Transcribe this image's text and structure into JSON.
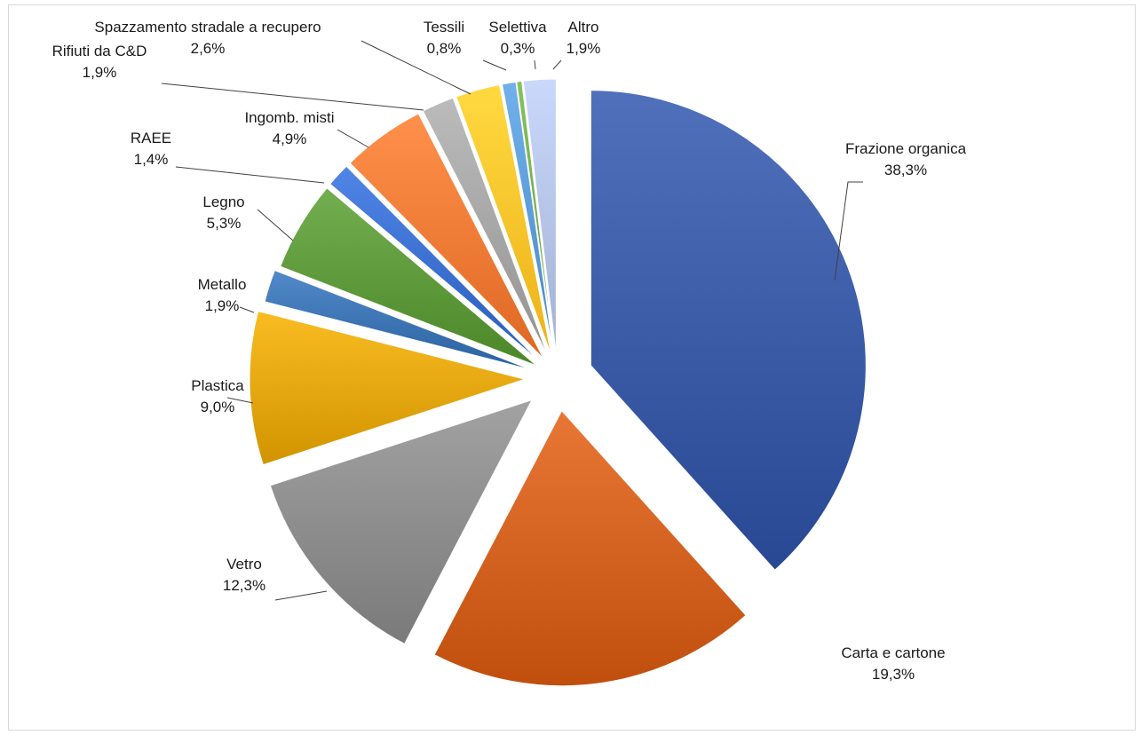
{
  "chart_data": {
    "type": "pie",
    "title": "",
    "slices": [
      {
        "label": "Frazione organica",
        "value": 38.3,
        "value_label": "38,3%",
        "color": "#3a5aa6"
      },
      {
        "label": "Carta e cartone",
        "value": 19.3,
        "value_label": "19,3%",
        "color": "#d2601f"
      },
      {
        "label": "Vetro",
        "value": 12.3,
        "value_label": "12,3%",
        "color": "#8c8c8c"
      },
      {
        "label": "Plastica",
        "value": 9.0,
        "value_label": "9,0%",
        "color": "#e3a60c"
      },
      {
        "label": "Metallo",
        "value": 1.9,
        "value_label": "1,9%",
        "color": "#3c73b3"
      },
      {
        "label": "Legno",
        "value": 5.3,
        "value_label": "5,3%",
        "color": "#5d993a"
      },
      {
        "label": "RAEE",
        "value": 1.4,
        "value_label": "1,4%",
        "color": "#3a6fd0"
      },
      {
        "label": "Ingomb. misti",
        "value": 4.9,
        "value_label": "4,9%",
        "color": "#f07a35"
      },
      {
        "label": "Rifiuti da C&D",
        "value": 1.9,
        "value_label": "1,9%",
        "color": "#a5a5a5"
      },
      {
        "label": "Spazzamento stradale a recupero",
        "value": 2.6,
        "value_label": "2,6%",
        "color": "#ffc32a"
      },
      {
        "label": "Tessili",
        "value": 0.8,
        "value_label": "0,8%",
        "color": "#5b9bd5"
      },
      {
        "label": "Selettiva",
        "value": 0.3,
        "value_label": "0,3%",
        "color": "#70ad47"
      },
      {
        "label": "Altro",
        "value": 1.9,
        "value_label": "1,9%",
        "color": "#b4c2e6"
      }
    ]
  }
}
